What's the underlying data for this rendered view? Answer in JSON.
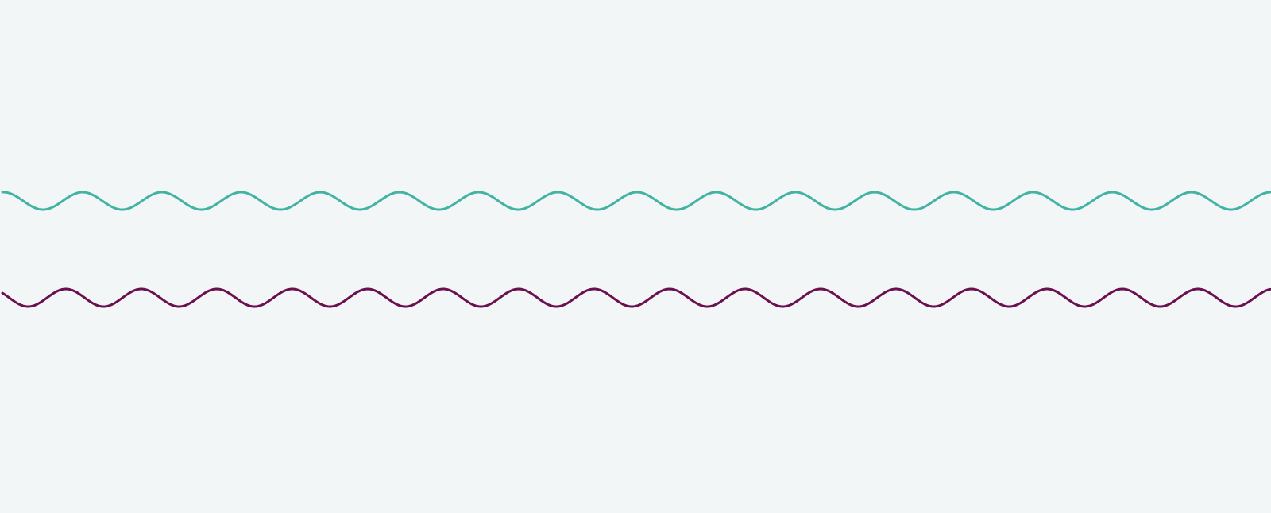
{
  "background_color": "#f2f6f7",
  "waves": [
    {
      "name": "teal-wave",
      "color": "#42b3a3"
    },
    {
      "name": "plum-wave",
      "color": "#6b0f4f"
    }
  ]
}
